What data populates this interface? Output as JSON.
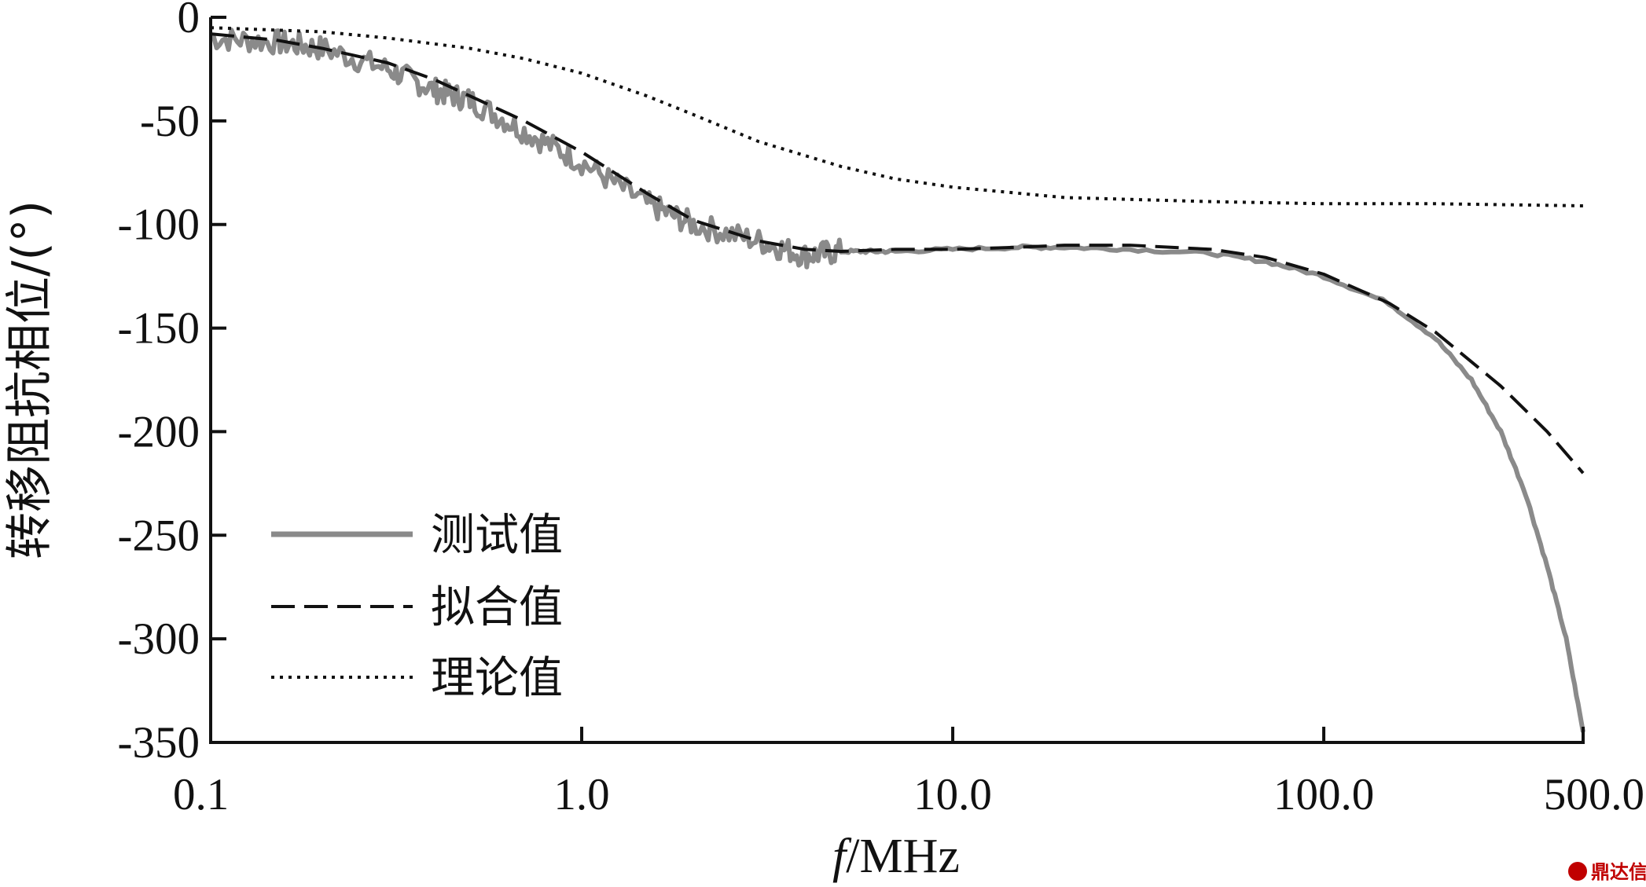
{
  "chart_data": {
    "type": "line",
    "xlabel_italic": "f",
    "xlabel_rest": "/MHz",
    "ylabel": "转移阻抗相位/(°)",
    "xscale": "log",
    "xlim": [
      0.1,
      500.0
    ],
    "ylim": [
      -350,
      0
    ],
    "x_ticks": [
      0.1,
      1.0,
      10.0,
      100.0,
      500.0
    ],
    "x_tick_labels": [
      "0.1",
      "1.0",
      "10.0",
      "100.0",
      "500.0"
    ],
    "y_ticks": [
      0,
      -50,
      -100,
      -150,
      -200,
      -250,
      -300,
      -350
    ],
    "y_tick_labels": [
      "0",
      "-50",
      "-100",
      "-150",
      "-200",
      "-250",
      "-300",
      "-350"
    ],
    "grid": false,
    "legend_position": "bottom-left",
    "series": [
      {
        "name": "测试值",
        "style": "solid",
        "color": "#8a8a8a",
        "noisy": true,
        "x": [
          0.1,
          0.15,
          0.2,
          0.3,
          0.4,
          0.5,
          0.7,
          1.0,
          1.5,
          2.0,
          3.0,
          4.0,
          5.0,
          7.0,
          10.0,
          15.0,
          20.0,
          30.0,
          50.0,
          70.0,
          100.0,
          150.0,
          200.0,
          250.0,
          300.0,
          350.0,
          400.0,
          450.0,
          500.0
        ],
        "y": [
          -10,
          -12,
          -15,
          -25,
          -35,
          -40,
          -55,
          -70,
          -90,
          -100,
          -108,
          -115,
          -113,
          -113,
          -112,
          -111,
          -111,
          -112,
          -114,
          -118,
          -125,
          -138,
          -155,
          -175,
          -200,
          -230,
          -265,
          -300,
          -345
        ]
      },
      {
        "name": "拟合值",
        "style": "dashed",
        "color": "#111111",
        "x": [
          0.1,
          0.15,
          0.2,
          0.3,
          0.4,
          0.5,
          0.7,
          1.0,
          1.5,
          2.0,
          3.0,
          4.0,
          5.0,
          7.0,
          10.0,
          15.0,
          20.0,
          30.0,
          50.0,
          70.0,
          100.0,
          150.0,
          200.0,
          300.0,
          400.0,
          500.0
        ],
        "y": [
          -8,
          -11,
          -15,
          -22,
          -30,
          -38,
          -50,
          -65,
          -85,
          -98,
          -108,
          -112,
          -113,
          -112,
          -112,
          -111,
          -110,
          -110,
          -112,
          -116,
          -124,
          -138,
          -152,
          -178,
          -200,
          -220
        ]
      },
      {
        "name": "理论值",
        "style": "dotted",
        "color": "#111111",
        "x": [
          0.1,
          0.2,
          0.3,
          0.5,
          0.7,
          1.0,
          1.5,
          2.0,
          3.0,
          5.0,
          7.0,
          10.0,
          20.0,
          50.0,
          100.0,
          200.0,
          500.0
        ],
        "y": [
          -5,
          -7,
          -10,
          -15,
          -20,
          -27,
          -38,
          -47,
          -60,
          -72,
          -78,
          -82,
          -87,
          -89,
          -90,
          -90,
          -91
        ]
      }
    ]
  },
  "watermark": "鼎达信"
}
